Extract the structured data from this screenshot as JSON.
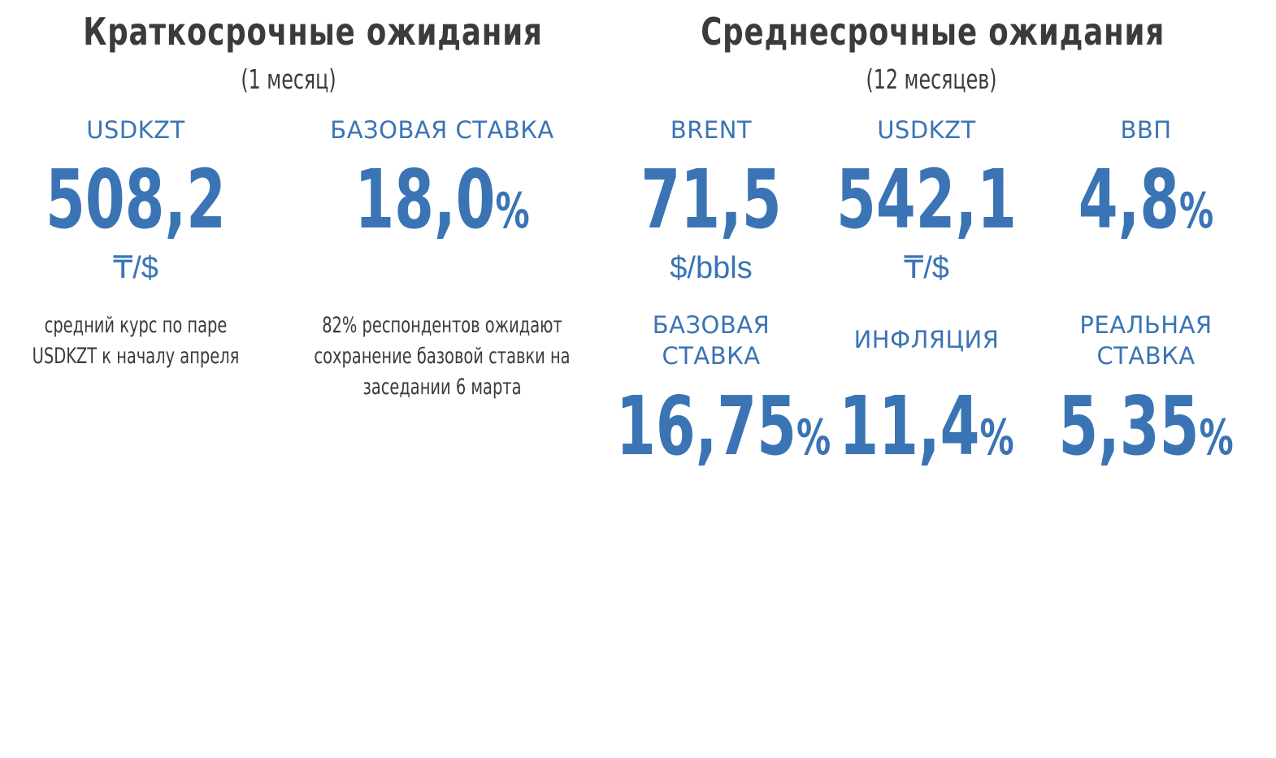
{
  "short_term": {
    "title": "Краткосрочные ожидания",
    "subtitle": "(1 месяц)",
    "usdkzt": {
      "label": "USDKZT",
      "value": "508,2",
      "unit": "₸/$",
      "note_line1": "средний курс по паре",
      "note_line2": "USDKZT к началу апреля"
    },
    "base_rate": {
      "label": "БАЗОВАЯ СТАВКА",
      "value": "18,0",
      "pct": "%",
      "note_line1": "82% респондентов ожидают",
      "note_line2": "сохранение базовой ставки на",
      "note_line3": "заседании 6 марта"
    }
  },
  "mid_term": {
    "title": "Среднесрочные ожидания",
    "subtitle": "(12 месяцев)",
    "brent": {
      "label": "BRENT",
      "value": "71,5",
      "unit": "$/bbls"
    },
    "usdkzt": {
      "label": "USDKZT",
      "value": "542,1",
      "unit": "₸/$"
    },
    "gdp": {
      "label": "ВВП",
      "value": "4,8",
      "pct": "%"
    },
    "base_rate": {
      "label_line1": "БАЗОВАЯ",
      "label_line2": "СТАВКА",
      "value": "16,75",
      "pct": "%"
    },
    "inflation": {
      "label": "ИНФЛЯЦИЯ",
      "value": "11,4",
      "pct": "%"
    },
    "real_rate": {
      "label_line1": "РЕАЛЬНАЯ",
      "label_line2": "СТАВКА",
      "value": "5,35",
      "pct": "%"
    }
  },
  "colors": {
    "accent_blue": "#3a74b5",
    "text_dark": "#3b3b3b"
  }
}
